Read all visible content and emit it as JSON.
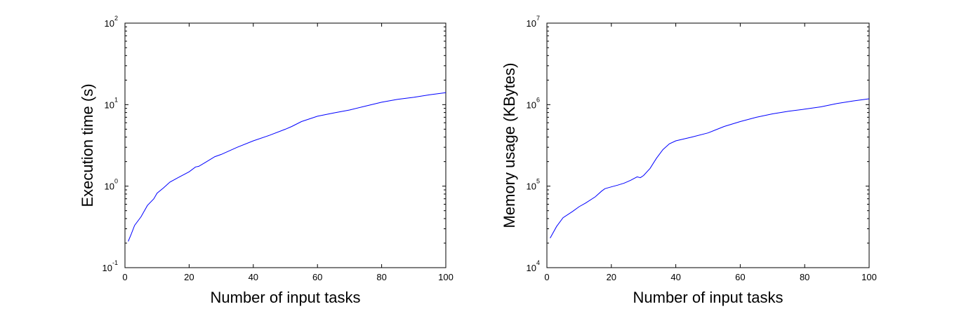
{
  "chart_data": [
    {
      "type": "line",
      "title": "",
      "xlabel": "Number of input tasks",
      "ylabel": "Execution time (s)",
      "xlim": [
        0,
        100
      ],
      "ylim": [
        0.1,
        100
      ],
      "yscale": "log",
      "x_ticks": [
        "0",
        "20",
        "40",
        "60",
        "80",
        "100"
      ],
      "y_ticks": [
        {
          "base": "10",
          "exp": "-1"
        },
        {
          "base": "10",
          "exp": "0"
        },
        {
          "base": "10",
          "exp": "1"
        },
        {
          "base": "10",
          "exp": "2"
        }
      ],
      "grid": false,
      "series": [
        {
          "color": "#0000ff",
          "x": [
            1,
            2,
            3,
            5,
            7,
            9,
            10,
            12,
            14,
            17,
            20,
            22,
            23,
            25,
            28,
            30,
            35,
            40,
            45,
            50,
            52,
            55,
            60,
            65,
            70,
            75,
            80,
            85,
            90,
            95,
            100
          ],
          "y": [
            0.21,
            0.26,
            0.33,
            0.42,
            0.58,
            0.7,
            0.82,
            0.95,
            1.12,
            1.3,
            1.5,
            1.72,
            1.75,
            1.95,
            2.3,
            2.45,
            3.0,
            3.6,
            4.2,
            5.0,
            5.4,
            6.2,
            7.2,
            7.9,
            8.6,
            9.6,
            10.7,
            11.6,
            12.3,
            13.2,
            14.0
          ]
        }
      ]
    },
    {
      "type": "line",
      "title": "",
      "xlabel": "Number of input tasks",
      "ylabel": "Memory usage (KBytes)",
      "xlim": [
        0,
        100
      ],
      "ylim": [
        10000,
        10000000
      ],
      "yscale": "log",
      "x_ticks": [
        "0",
        "20",
        "40",
        "60",
        "80",
        "100"
      ],
      "y_ticks": [
        {
          "base": "10",
          "exp": "4"
        },
        {
          "base": "10",
          "exp": "5"
        },
        {
          "base": "10",
          "exp": "6"
        },
        {
          "base": "10",
          "exp": "7"
        }
      ],
      "grid": false,
      "series": [
        {
          "color": "#0000ff",
          "x": [
            1,
            3,
            5,
            8,
            10,
            12,
            15,
            17,
            18,
            20,
            22,
            24,
            26,
            28,
            29,
            30,
            32,
            34,
            36,
            38,
            40,
            45,
            50,
            55,
            60,
            65,
            70,
            75,
            80,
            85,
            90,
            95,
            100
          ],
          "y": [
            23000,
            32000,
            41000,
            49000,
            56000,
            62000,
            74000,
            87000,
            93000,
            98000,
            103000,
            109000,
            118000,
            130000,
            127000,
            135000,
            165000,
            220000,
            280000,
            330000,
            360000,
            400000,
            450000,
            540000,
            620000,
            700000,
            770000,
            830000,
            880000,
            940000,
            1030000,
            1110000,
            1180000
          ]
        }
      ]
    }
  ]
}
